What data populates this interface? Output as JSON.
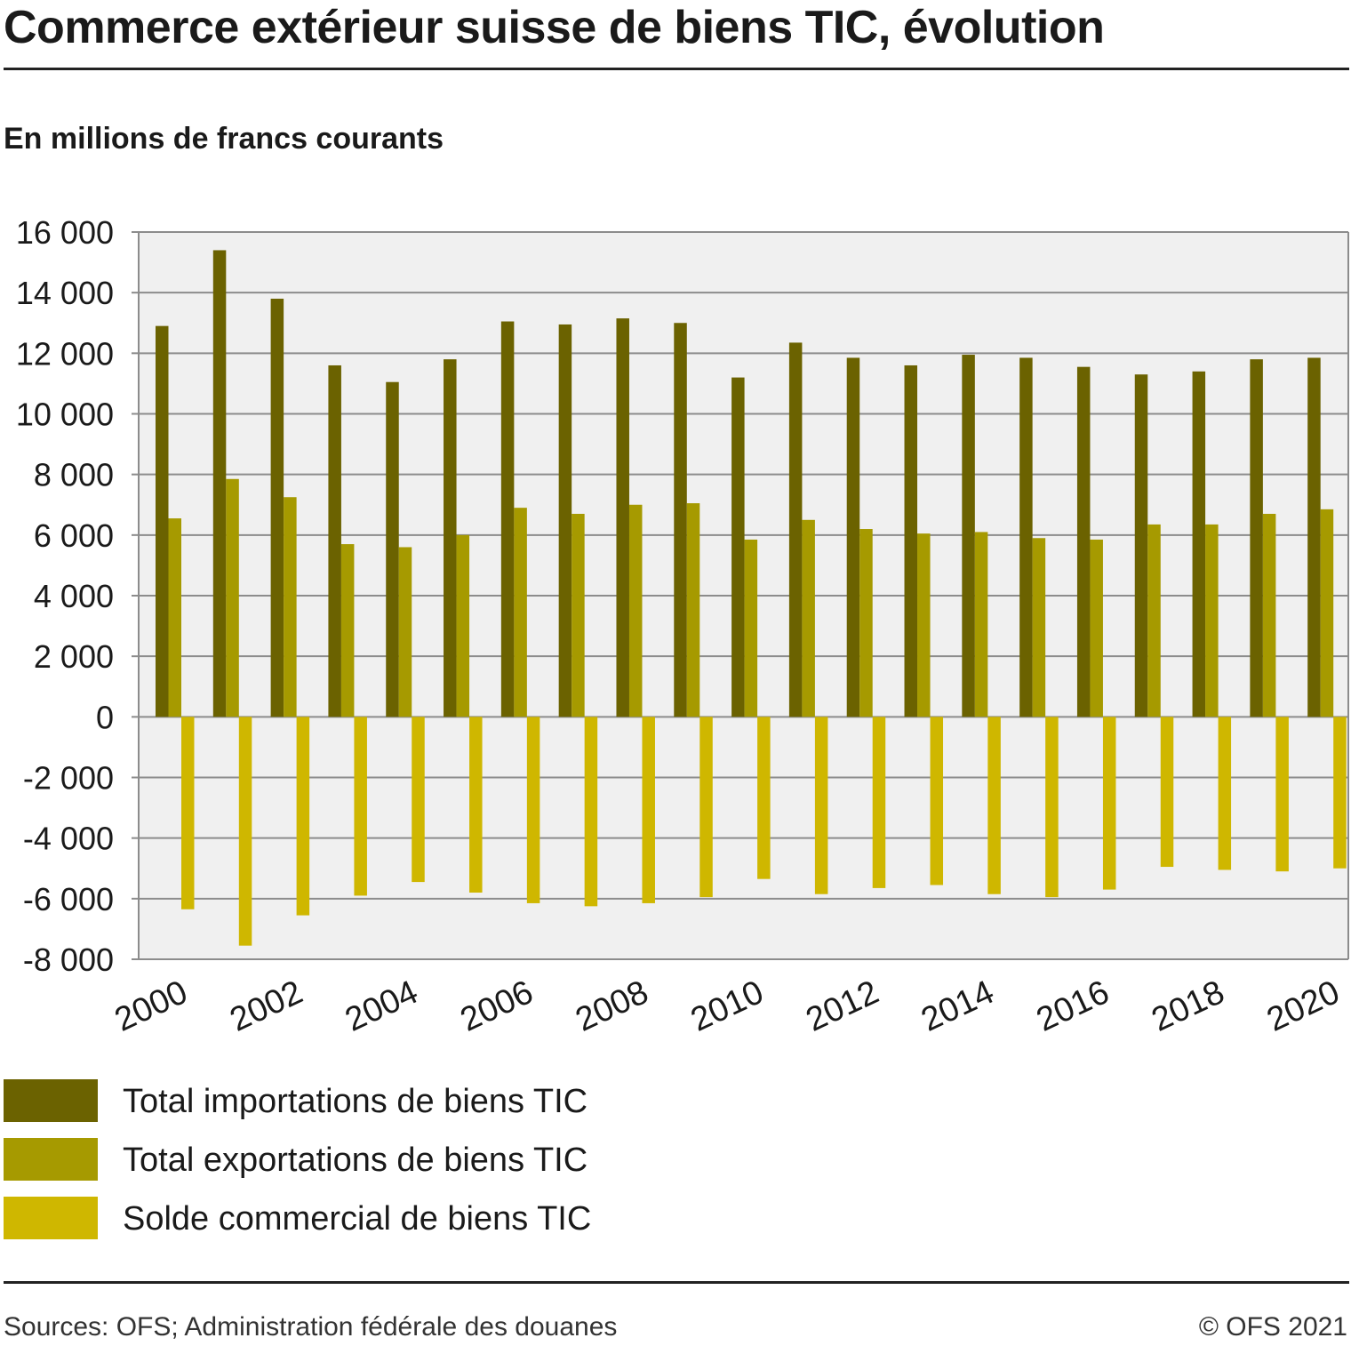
{
  "title": "Commerce extérieur suisse de biens TIC, évolution",
  "subtitle": "En millions de francs courants",
  "source": "Sources: OFS; Administration fédérale des douanes",
  "copyright": "© OFS 2021",
  "colors": {
    "imports": "#6b6200",
    "exports": "#a69a00",
    "balance": "#cfb700",
    "plot_bg": "#f0f0f0",
    "grid": "#8c8c8c"
  },
  "legend": [
    {
      "label": "Total importations de biens TIC",
      "color": "#6b6200"
    },
    {
      "label": "Total exportations de biens TIC",
      "color": "#a69a00"
    },
    {
      "label": "Solde commercial de biens TIC",
      "color": "#cfb700"
    }
  ],
  "chart_data": {
    "type": "bar",
    "categories": [
      "2000",
      "2001",
      "2002",
      "2003",
      "2004",
      "2005",
      "2006",
      "2007",
      "2008",
      "2009",
      "2010",
      "2011",
      "2012",
      "2013",
      "2014",
      "2015",
      "2016",
      "2017",
      "2018",
      "2019",
      "2020"
    ],
    "x_tick_labels": [
      "2000",
      "2002",
      "2004",
      "2006",
      "2008",
      "2010",
      "2012",
      "2014",
      "2016",
      "2018",
      "2020"
    ],
    "y_tick_labels": [
      "16 000",
      "14 000",
      "12 000",
      "10 000",
      "8 000",
      "6 000",
      "4 000",
      "2 000",
      "0",
      "-2 000",
      "-4 000",
      "-6 000",
      "-8 000"
    ],
    "ylim": [
      -8000,
      16000
    ],
    "y_ticks": [
      16000,
      14000,
      12000,
      10000,
      8000,
      6000,
      4000,
      2000,
      0,
      -2000,
      -4000,
      -6000,
      -8000
    ],
    "grid": true,
    "legend_position": "bottom",
    "series": [
      {
        "name": "Total importations de biens TIC",
        "values": [
          12900,
          15400,
          13800,
          11600,
          11050,
          11800,
          13050,
          12950,
          13150,
          13000,
          11200,
          12350,
          11850,
          11600,
          11950,
          11850,
          11550,
          11300,
          11400,
          11800,
          11850
        ]
      },
      {
        "name": "Total exportations de biens TIC",
        "values": [
          6550,
          7850,
          7250,
          5700,
          5600,
          6000,
          6900,
          6700,
          7000,
          7050,
          5850,
          6500,
          6200,
          6050,
          6100,
          5900,
          5850,
          6350,
          6350,
          6700,
          6850
        ]
      },
      {
        "name": "Solde commercial de biens TIC",
        "values": [
          -6350,
          -7550,
          -6550,
          -5900,
          -5450,
          -5800,
          -6150,
          -6250,
          -6150,
          -5950,
          -5350,
          -5850,
          -5650,
          -5550,
          -5850,
          -5950,
          -5700,
          -4950,
          -5050,
          -5100,
          -5000
        ]
      }
    ]
  }
}
